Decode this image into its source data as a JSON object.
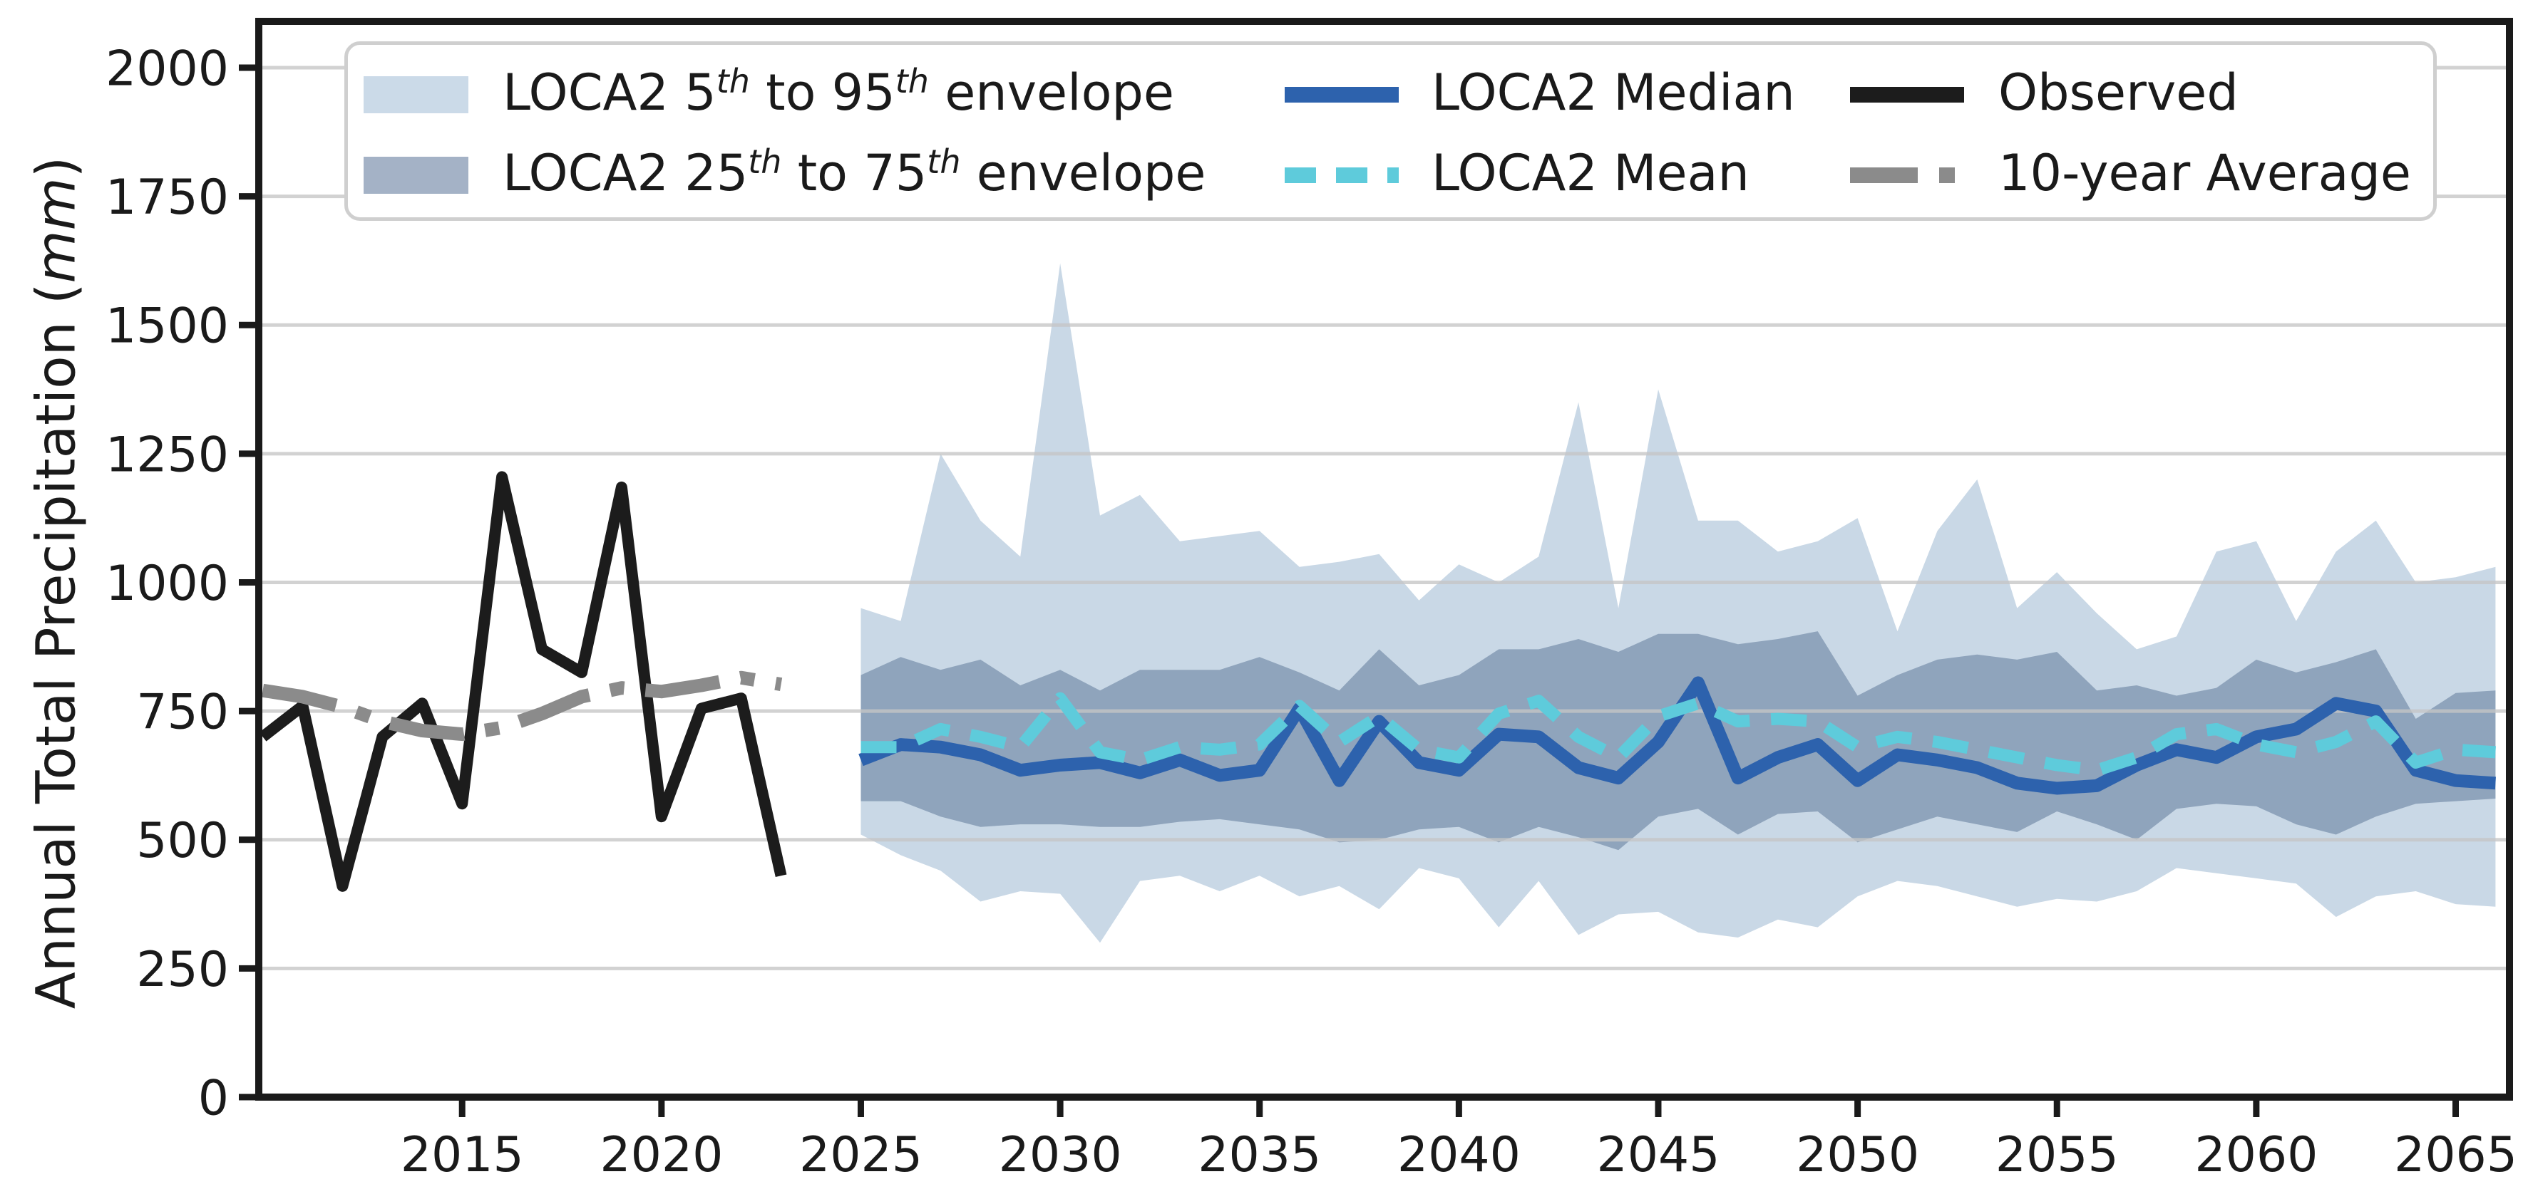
{
  "page": {
    "type": "matplotlib-style climate projection time-series figure",
    "background": "#ffffff"
  },
  "ylabel": {
    "pre": "Annual Total Precipitation (",
    "italic": "mm",
    "post": ")"
  },
  "chart_data": {
    "type": "line",
    "title": "",
    "xlabel": "",
    "ylabel": "Annual Total Precipitation (mm)",
    "xlim": [
      2009.9,
      2066.35
    ],
    "ylim": [
      0,
      2090
    ],
    "xticks": [
      2015,
      2020,
      2025,
      2030,
      2035,
      2040,
      2045,
      2050,
      2055,
      2060,
      2065
    ],
    "yticks": [
      0,
      250,
      500,
      750,
      1000,
      1250,
      1500,
      1750,
      2000
    ],
    "grid": "horizontal",
    "grid_color": "#c6c6c6",
    "frame_color": "#1a1a1a",
    "tick_label_color": "#1a1a1a",
    "years_observed": [
      2010,
      2011,
      2012,
      2013,
      2014,
      2015,
      2016,
      2017,
      2018,
      2019,
      2020,
      2021,
      2022,
      2023
    ],
    "years_projection": [
      2025,
      2026,
      2027,
      2028,
      2029,
      2030,
      2031,
      2032,
      2033,
      2034,
      2035,
      2036,
      2037,
      2038,
      2039,
      2040,
      2041,
      2042,
      2043,
      2044,
      2045,
      2046,
      2047,
      2048,
      2049,
      2050,
      2051,
      2052,
      2053,
      2054,
      2055,
      2056,
      2057,
      2058,
      2059,
      2060,
      2061,
      2062,
      2063,
      2064,
      2065,
      2066
    ],
    "series": [
      {
        "name": "LOCA2 5th to 95th envelope",
        "kind": "band",
        "color": "#c9d8e6",
        "x_key": "years_projection",
        "y_low": [
          510,
          470,
          440,
          380,
          400,
          395,
          300,
          420,
          430,
          400,
          430,
          390,
          410,
          365,
          445,
          425,
          330,
          420,
          315,
          355,
          360,
          320,
          310,
          345,
          330,
          390,
          420,
          410,
          390,
          370,
          385,
          380,
          400,
          445,
          435,
          425,
          415,
          350,
          390,
          400,
          375,
          370
        ],
        "y_high": [
          950,
          925,
          1250,
          1120,
          1050,
          1620,
          1130,
          1170,
          1080,
          1090,
          1100,
          1030,
          1040,
          1055,
          965,
          1035,
          1000,
          1050,
          1350,
          950,
          1375,
          1120,
          1120,
          1060,
          1080,
          1125,
          905,
          1100,
          1200,
          950,
          1020,
          940,
          870,
          895,
          1060,
          1080,
          925,
          1060,
          1120,
          1000,
          1010,
          1030
        ]
      },
      {
        "name": "LOCA2 25th to 75th envelope",
        "kind": "band",
        "color": "#8fa4bc",
        "x_key": "years_projection",
        "y_low": [
          575,
          575,
          545,
          525,
          530,
          530,
          525,
          525,
          535,
          540,
          530,
          520,
          495,
          500,
          520,
          525,
          495,
          525,
          505,
          480,
          545,
          560,
          510,
          550,
          555,
          495,
          520,
          545,
          530,
          515,
          555,
          530,
          500,
          560,
          570,
          565,
          530,
          510,
          545,
          570,
          575,
          580
        ],
        "y_high": [
          820,
          855,
          830,
          850,
          800,
          830,
          790,
          830,
          830,
          830,
          855,
          825,
          790,
          870,
          800,
          820,
          870,
          870,
          890,
          865,
          900,
          900,
          880,
          890,
          905,
          780,
          820,
          850,
          860,
          850,
          865,
          790,
          800,
          780,
          795,
          850,
          825,
          845,
          870,
          735,
          785,
          790
        ]
      },
      {
        "name": "LOCA2 Median",
        "kind": "line",
        "color": "#2d62ad",
        "style": "solid",
        "width": 18,
        "x_key": "years_projection",
        "y": [
          655,
          685,
          680,
          665,
          635,
          645,
          650,
          630,
          655,
          625,
          635,
          755,
          615,
          730,
          650,
          635,
          705,
          700,
          640,
          620,
          690,
          805,
          620,
          660,
          685,
          615,
          665,
          655,
          640,
          610,
          600,
          605,
          645,
          675,
          660,
          700,
          715,
          765,
          750,
          635,
          615,
          610
        ]
      },
      {
        "name": "LOCA2 Mean",
        "kind": "line",
        "color": "#5ecbdb",
        "style": "dashed",
        "dash": [
          50,
          30
        ],
        "width": 17,
        "x_key": "years_projection",
        "y": [
          680,
          680,
          715,
          700,
          680,
          775,
          670,
          655,
          680,
          675,
          685,
          760,
          690,
          740,
          675,
          660,
          745,
          770,
          700,
          660,
          740,
          765,
          730,
          735,
          730,
          680,
          700,
          690,
          675,
          660,
          645,
          635,
          660,
          705,
          715,
          685,
          670,
          690,
          730,
          650,
          675,
          670
        ]
      },
      {
        "name": "Observed",
        "kind": "line",
        "color": "#1c1c1c",
        "style": "solid",
        "width": 16,
        "x_key": "years_observed",
        "y": [
          700,
          760,
          410,
          700,
          765,
          570,
          1205,
          870,
          825,
          1185,
          545,
          755,
          775,
          430
        ]
      },
      {
        "name": "10-year Average",
        "kind": "line",
        "color": "#8b8b8b",
        "style": "dashdot",
        "dash": [
          105,
          30,
          20,
          30
        ],
        "width": 19,
        "x_key": "years_observed",
        "y": [
          790,
          778,
          758,
          730,
          712,
          705,
          718,
          745,
          778,
          795,
          788,
          800,
          815,
          802
        ]
      }
    ],
    "legend": {
      "position": "upper left inside plot",
      "border_color": "#cfcfcf",
      "items": [
        {
          "label": "LOCA2 5th to 95th envelope",
          "handle": "patch",
          "color": "#cbdae8",
          "parts": [
            {
              "t": "LOCA2 5"
            },
            {
              "t": "th",
              "sup": true
            },
            {
              "t": " to 95"
            },
            {
              "t": "th",
              "sup": true
            },
            {
              "t": " envelope"
            }
          ],
          "col": 0,
          "row": 0
        },
        {
          "label": "LOCA2 25th to 75th envelope",
          "handle": "patch",
          "color": "#a4b2c6",
          "parts": [
            {
              "t": "LOCA2 25"
            },
            {
              "t": "th",
              "sup": true
            },
            {
              "t": " to 75"
            },
            {
              "t": "th",
              "sup": true
            },
            {
              "t": " envelope"
            }
          ],
          "col": 0,
          "row": 1
        },
        {
          "label": "LOCA2 Median",
          "handle": "line",
          "color": "#2d62ad",
          "dash": null,
          "parts": [
            {
              "t": "LOCA2 Median"
            }
          ],
          "col": 1,
          "row": 0
        },
        {
          "label": "LOCA2 Mean",
          "handle": "line",
          "color": "#5ecbdb",
          "dash": [
            44,
            28
          ],
          "parts": [
            {
              "t": "LOCA2 Mean"
            }
          ],
          "col": 1,
          "row": 1
        },
        {
          "label": "Observed",
          "handle": "line",
          "color": "#1c1c1c",
          "dash": null,
          "parts": [
            {
              "t": "Observed"
            }
          ],
          "col": 2,
          "row": 0
        },
        {
          "label": "10-year Average",
          "handle": "line",
          "color": "#8b8b8b",
          "dash": [
            95,
            30,
            22,
            30
          ],
          "parts": [
            {
              "t": "10-year Average"
            }
          ],
          "col": 2,
          "row": 1
        }
      ]
    },
    "layout": {
      "plot_left": 363,
      "plot_top": 30,
      "plot_right": 3520,
      "plot_bottom": 1540,
      "tick_len": 28,
      "tick_width": 9,
      "frame_width": 10,
      "tick_font_size": 68,
      "legend_cols_handle_x": [
        22,
        1314,
        2107
      ],
      "legend_cols_label_x": [
        217,
        1520,
        2315
      ],
      "legend_rows_cy": [
        70,
        183
      ],
      "legend_line_sample_w": 160
    }
  }
}
